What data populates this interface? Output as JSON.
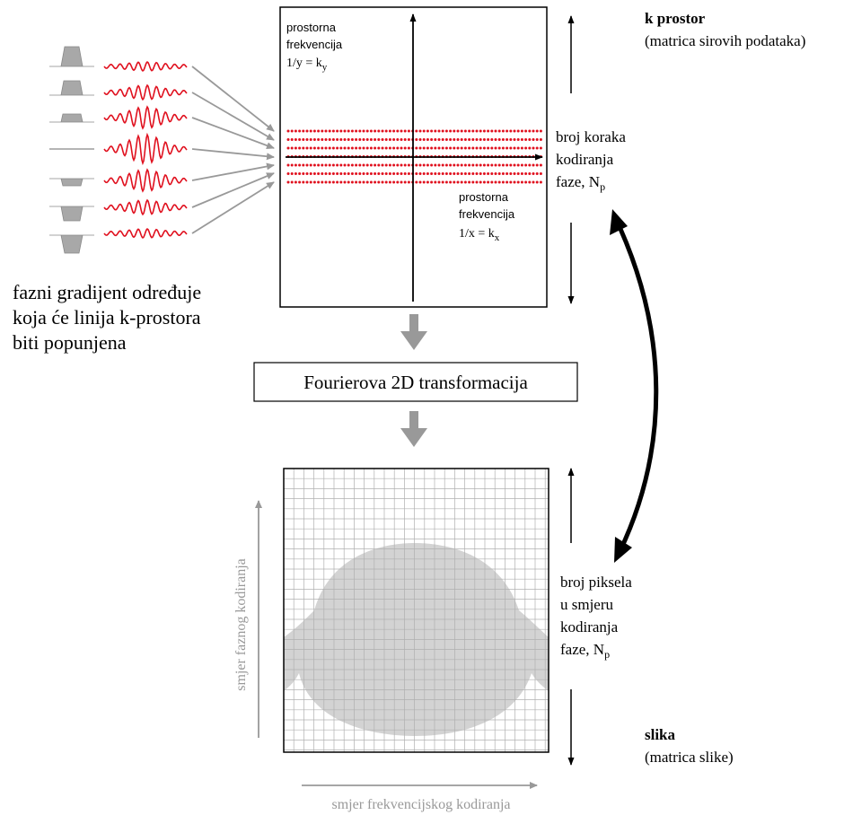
{
  "kspace": {
    "title": "k prostor",
    "subtitle": "(matrica sirovih podataka)",
    "freq_y_line1": "prostorna",
    "freq_y_line2": "frekvencija",
    "freq_y_formula": "1/y = k",
    "freq_y_sub": "y",
    "freq_x_line1": "prostorna",
    "freq_x_line2": "frekvencija",
    "freq_x_formula": "1/x = k",
    "freq_x_sub": "x",
    "phase_steps_line1": "broj koraka",
    "phase_steps_line2": "kodiranja",
    "phase_steps_line3": "faze, N",
    "phase_steps_sub": "p"
  },
  "gradient_caption": {
    "line1": "fazni gradijent određuje",
    "line2": "koja će linija k-prostora",
    "line3": "biti popunjena"
  },
  "transform": {
    "label": "Fourierova 2D transformacija"
  },
  "image": {
    "title": "slika",
    "subtitle": "(matrica slike)",
    "pixels_line1": "broj piksela",
    "pixels_line2": "u smjeru",
    "pixels_line3": "kodiranja",
    "pixels_line4": "faze, N",
    "pixels_sub": "p",
    "axis_phase": "smjer faznog kodiranja",
    "axis_frequency": "smjer frekvencijskog kodiranja"
  },
  "colors": {
    "signal": "#e0101e",
    "arrow_gray": "#999999",
    "shape_gray": "#d3d3d3",
    "grid_line": "#b0b0b0",
    "black": "#000000"
  }
}
